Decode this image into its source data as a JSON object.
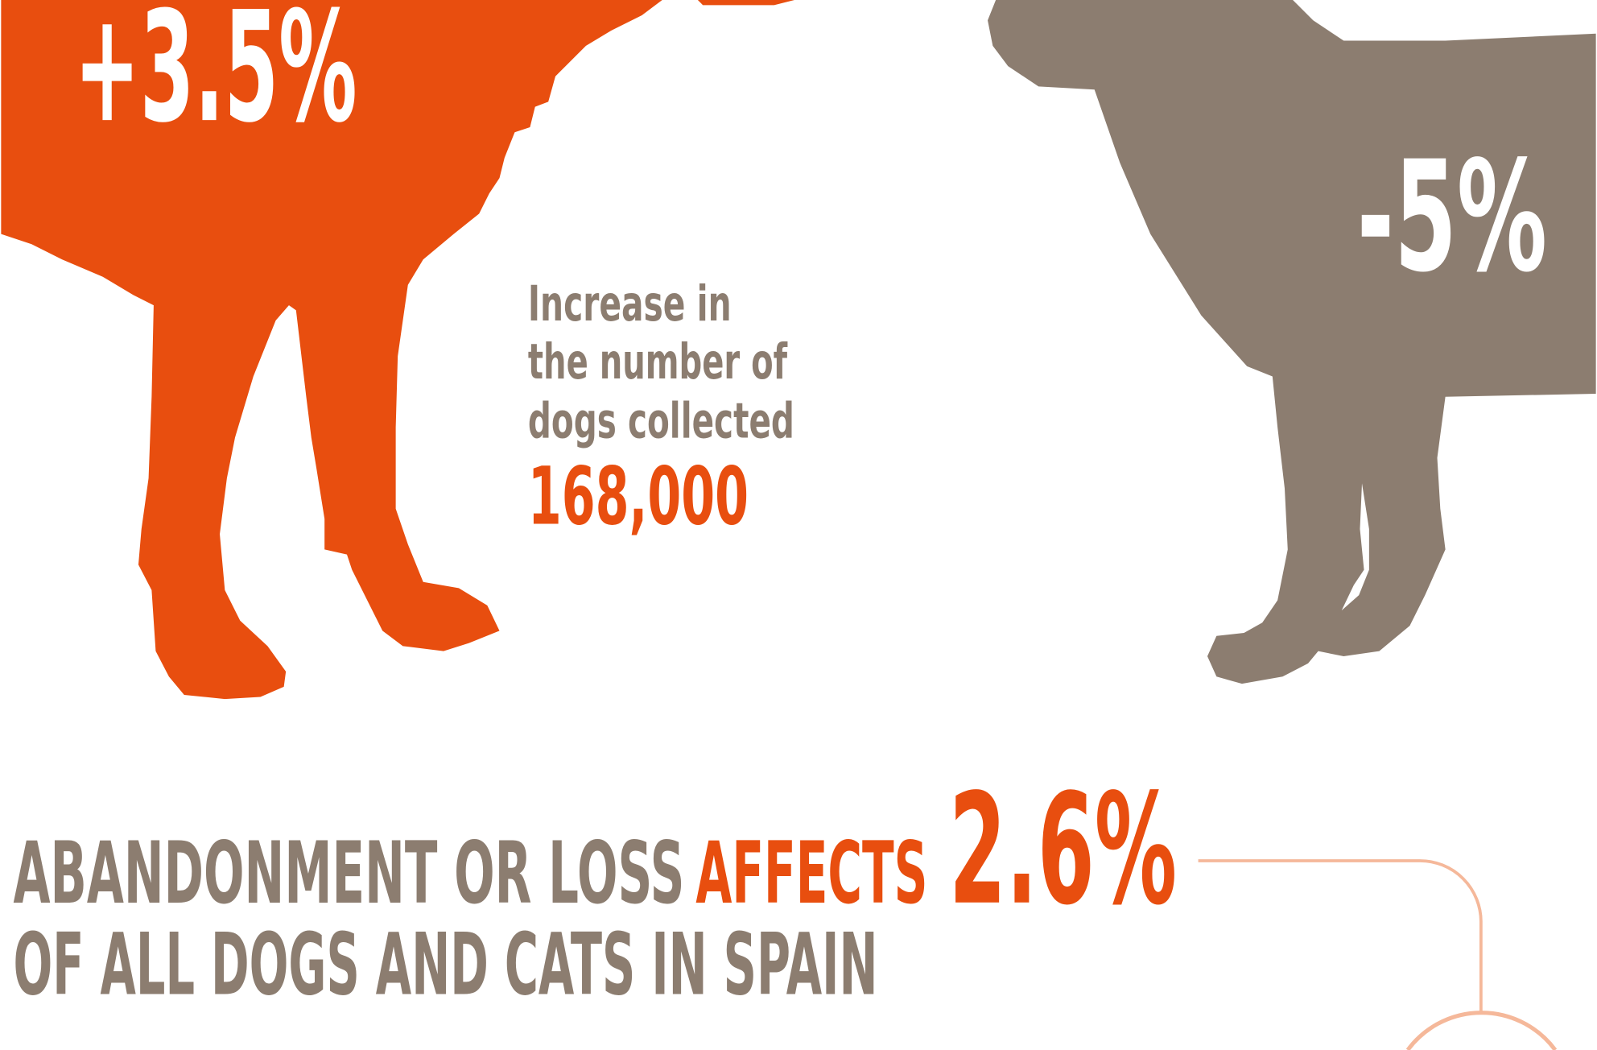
{
  "left_stat": {
    "label": "+3.5%"
  },
  "right_stat": {
    "label": "-5%"
  },
  "caption": {
    "lines": [
      "Increase in",
      "the number of",
      "dogs collected"
    ],
    "value": "168,000"
  },
  "headline": {
    "part1": "ABANDONMENT OR LOSS",
    "highlight": "AFFECTS",
    "value": "2.6%",
    "line2": "OF ALL DOGS AND CATS IN SPAIN"
  }
}
